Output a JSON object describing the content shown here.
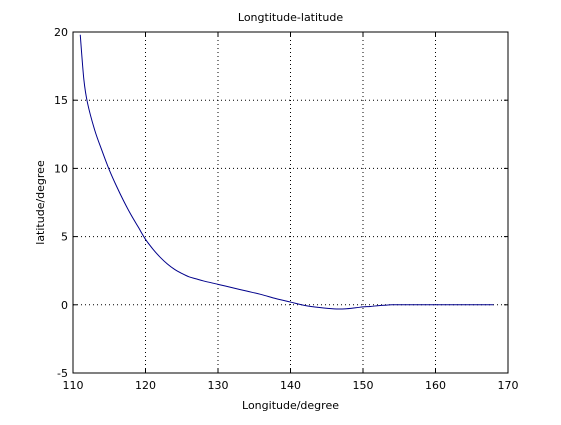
{
  "chart_data": {
    "type": "line",
    "title": "Longtitude-latitude",
    "xlabel": "Longitude/degree",
    "ylabel": "latitude/degree",
    "xlim": [
      110,
      170
    ],
    "ylim": [
      -5,
      20
    ],
    "xticks": [
      110,
      120,
      130,
      140,
      150,
      160,
      170
    ],
    "yticks": [
      -5,
      0,
      5,
      10,
      15,
      20
    ],
    "grid": true,
    "grid_style": "dotted",
    "line_color": "#00008b",
    "series": [
      {
        "x": [
          111.0,
          111.5,
          112.0,
          113.0,
          114.0,
          115.0,
          116.0,
          117.0,
          118.0,
          119.0,
          120.0,
          121.0,
          122.0,
          123.0,
          124.0,
          125.0,
          126.0,
          127.0,
          128.0,
          130.0,
          132.0,
          134.0,
          136.0,
          138.0,
          140.0,
          142.0,
          144.0,
          146.0,
          147.5,
          149.0,
          150.0,
          151.0,
          152.0,
          153.0,
          154.0,
          156.0,
          160.0,
          165.0,
          168.0
        ],
        "y": [
          19.8,
          16.5,
          14.8,
          12.8,
          11.3,
          9.9,
          8.7,
          7.6,
          6.6,
          5.7,
          4.8,
          4.1,
          3.5,
          3.0,
          2.6,
          2.3,
          2.05,
          1.9,
          1.75,
          1.5,
          1.25,
          1.0,
          0.75,
          0.45,
          0.2,
          -0.05,
          -0.2,
          -0.3,
          -0.3,
          -0.22,
          -0.15,
          -0.12,
          -0.07,
          -0.03,
          0.0,
          0.0,
          0.0,
          0.0,
          0.0
        ]
      }
    ]
  }
}
